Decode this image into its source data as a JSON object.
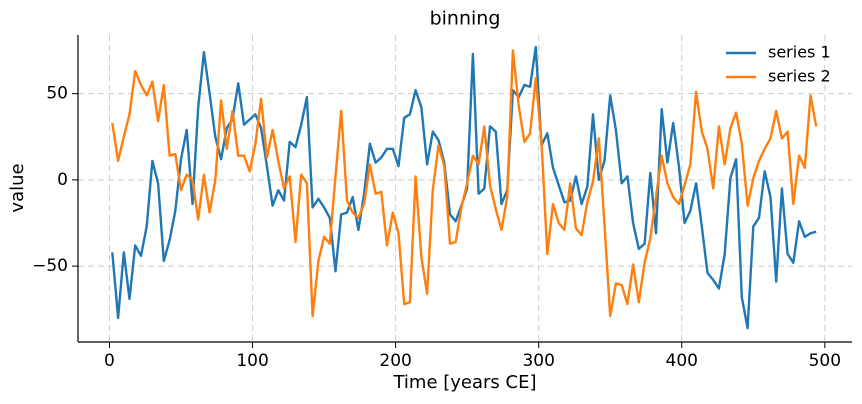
{
  "chart_data": {
    "type": "line",
    "title": "binning",
    "xlabel": "Time [years CE]",
    "ylabel": "value",
    "x": [
      2,
      6,
      10,
      14,
      18,
      22,
      26,
      30,
      34,
      38,
      42,
      46,
      50,
      54,
      58,
      62,
      66,
      70,
      74,
      78,
      82,
      86,
      90,
      94,
      98,
      102,
      106,
      110,
      114,
      118,
      122,
      126,
      130,
      134,
      138,
      142,
      146,
      150,
      154,
      158,
      162,
      166,
      170,
      174,
      178,
      182,
      186,
      190,
      194,
      198,
      202,
      206,
      210,
      214,
      218,
      222,
      226,
      230,
      234,
      238,
      242,
      246,
      250,
      254,
      258,
      262,
      266,
      270,
      274,
      278,
      282,
      286,
      290,
      294,
      298,
      302,
      306,
      310,
      314,
      318,
      322,
      326,
      330,
      334,
      338,
      342,
      346,
      350,
      354,
      358,
      362,
      366,
      370,
      374,
      378,
      382,
      386,
      390,
      394,
      398,
      402,
      406,
      410,
      414,
      418,
      422,
      426,
      430,
      434,
      438,
      442,
      446,
      450,
      454,
      458,
      462,
      466,
      470,
      474,
      478,
      482,
      486,
      490,
      494
    ],
    "series": [
      {
        "name": "series 1",
        "color": "#1f77b4",
        "values": [
          -42,
          -80,
          -42,
          -69,
          -38,
          -44,
          -27,
          11,
          -2,
          -47,
          -35,
          -18,
          12,
          29,
          -14,
          42,
          74,
          50,
          25,
          12,
          30,
          35,
          56,
          32,
          35,
          38,
          30,
          8,
          -15,
          -6,
          -12,
          22,
          19,
          32,
          48,
          -16,
          -11,
          -16,
          -22,
          -53,
          -20,
          -19,
          -10,
          -29,
          -8,
          21,
          10,
          13,
          18,
          18,
          8,
          36,
          38,
          52,
          42,
          9,
          28,
          23,
          10,
          -20,
          -24,
          -15,
          -5,
          73,
          -8,
          -5,
          31,
          28,
          -14,
          -6,
          52,
          48,
          55,
          54,
          77,
          20,
          27,
          7,
          -3,
          -13,
          -12,
          2,
          -14,
          -4,
          38,
          0,
          11,
          49,
          29,
          -2,
          2,
          -25,
          -40,
          -37,
          4,
          -31,
          41,
          10,
          33,
          8,
          -25,
          -18,
          -2,
          -27,
          -54,
          -58,
          -63,
          -43,
          1,
          12,
          -68,
          -86,
          -27,
          -22,
          5,
          -10,
          -59,
          -5,
          -43,
          -48,
          -24,
          -33,
          -31,
          -30
        ]
      },
      {
        "name": "series 2",
        "color": "#ff7f0e",
        "values": [
          33,
          11,
          25,
          38,
          63,
          55,
          49,
          57,
          34,
          55,
          14,
          15,
          -6,
          3,
          0,
          -23,
          3,
          -19,
          0,
          46,
          18,
          40,
          14,
          14,
          5,
          21,
          47,
          13,
          29,
          11,
          -5,
          2,
          -36,
          3,
          -2,
          -79,
          -47,
          -33,
          -37,
          2,
          40,
          -12,
          -19,
          -22,
          -14,
          9,
          -8,
          -7,
          -38,
          -19,
          -31,
          -72,
          -71,
          2,
          -45,
          -66,
          -6,
          20,
          8,
          -37,
          -36,
          -16,
          -2,
          14,
          9,
          31,
          -3,
          -17,
          -29,
          -10,
          75,
          43,
          22,
          27,
          59,
          22,
          -43,
          -14,
          -25,
          -29,
          -2,
          -28,
          -32,
          -13,
          -1,
          24,
          -26,
          -79,
          -60,
          -61,
          -72,
          -49,
          -71,
          -48,
          -34,
          -10,
          14,
          -2,
          -10,
          -14,
          -3,
          9,
          51,
          28,
          18,
          -5,
          31,
          9,
          30,
          39,
          21,
          -15,
          1,
          11,
          18,
          24,
          40,
          24,
          28,
          -14,
          14,
          7,
          49,
          31
        ]
      }
    ],
    "xlim": [
      -22,
      519
    ],
    "ylim": [
      -94,
      84
    ],
    "xticks": [
      0,
      100,
      200,
      300,
      400,
      500
    ],
    "yticks": [
      {
        "value": -50,
        "label": "−50"
      },
      0,
      50
    ],
    "grid": true,
    "legend": "upper right"
  }
}
